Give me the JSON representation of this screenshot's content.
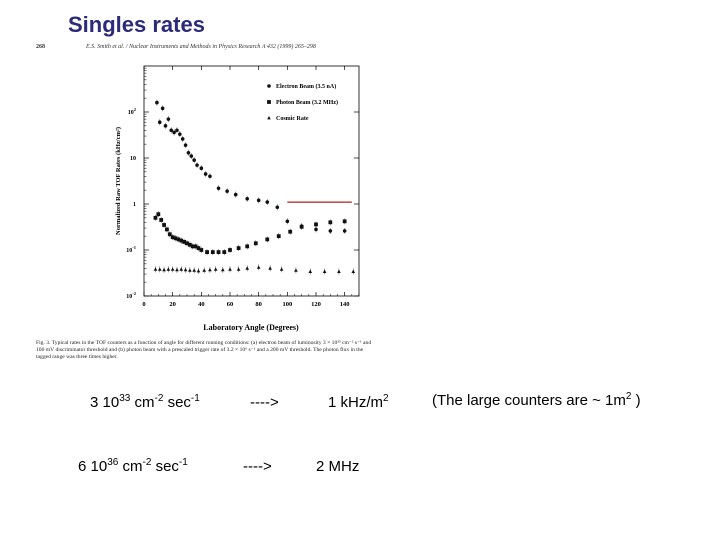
{
  "title": "Singles rates",
  "figure": {
    "page_number": "268",
    "journal_header": "E.S. Smith et al. / Nuclear Instruments and Methods in Physics Research A 432 (1999) 265–298",
    "caption": "Fig. 3. Typical rates in the TOF counters as a function of angle for different running conditions: (a) electron beam of luminosity 3 × 10³³ cm⁻² s⁻¹ and 100 mV discriminator threshold and (b) photon beam with a prescaled trigger rate of 3.2 × 10⁶ s⁻¹ and a 200 mV threshold. The photon flux in the tagged range was three times higher.",
    "reference_line_color": "#b02020"
  },
  "chart_data": {
    "type": "scatter",
    "xlabel": "Laboratory Angle (Degrees)",
    "ylabel": "Normalized Raw TOF Rates (kHz/cm²)",
    "xlim": [
      0,
      150
    ],
    "ylim_log10": [
      -2,
      3
    ],
    "x_ticks": [
      "0",
      "20",
      "40",
      "60",
      "80",
      "100",
      "120",
      "140"
    ],
    "y_ticks": [
      {
        "base": "10",
        "exp": "-2",
        "log": -2
      },
      {
        "base": "10",
        "exp": "-1",
        "log": -1
      },
      {
        "base": "1",
        "exp": "",
        "log": 0
      },
      {
        "base": "10",
        "exp": "",
        "log": 1
      },
      {
        "base": "10",
        "exp": "2",
        "log": 2
      }
    ],
    "log_scale_y": true,
    "legend_position": "top-right",
    "reference_line": {
      "y": 1.1,
      "x_range": [
        100,
        145
      ]
    },
    "series": [
      {
        "name": "Electron Beam (3.5 nA)",
        "marker": "circle",
        "points": [
          [
            9,
            160
          ],
          [
            11,
            60
          ],
          [
            13,
            120
          ],
          [
            15,
            50
          ],
          [
            17,
            70
          ],
          [
            19,
            40
          ],
          [
            21,
            36
          ],
          [
            23,
            40
          ],
          [
            25,
            33
          ],
          [
            27,
            26
          ],
          [
            29,
            19
          ],
          [
            31,
            13
          ],
          [
            33,
            11
          ],
          [
            35,
            9
          ],
          [
            37,
            7
          ],
          [
            40,
            6
          ],
          [
            43,
            4.5
          ],
          [
            46,
            4
          ],
          [
            52,
            2.2
          ],
          [
            58,
            1.9
          ],
          [
            64,
            1.6
          ],
          [
            72,
            1.3
          ],
          [
            80,
            1.2
          ],
          [
            86,
            1.1
          ],
          [
            93,
            0.85
          ],
          [
            100,
            0.42
          ],
          [
            110,
            0.33
          ],
          [
            120,
            0.28
          ],
          [
            130,
            0.26
          ],
          [
            140,
            0.26
          ]
        ]
      },
      {
        "name": "Photon Beam (3.2 MHz)",
        "marker": "square",
        "points": [
          [
            8,
            0.5
          ],
          [
            10,
            0.6
          ],
          [
            12,
            0.45
          ],
          [
            14,
            0.35
          ],
          [
            16,
            0.28
          ],
          [
            18,
            0.22
          ],
          [
            20,
            0.19
          ],
          [
            22,
            0.18
          ],
          [
            24,
            0.17
          ],
          [
            26,
            0.16
          ],
          [
            28,
            0.15
          ],
          [
            30,
            0.14
          ],
          [
            32,
            0.13
          ],
          [
            34,
            0.12
          ],
          [
            36,
            0.12
          ],
          [
            38,
            0.11
          ],
          [
            40,
            0.1
          ],
          [
            44,
            0.09
          ],
          [
            48,
            0.09
          ],
          [
            52,
            0.09
          ],
          [
            56,
            0.09
          ],
          [
            60,
            0.1
          ],
          [
            66,
            0.11
          ],
          [
            72,
            0.12
          ],
          [
            78,
            0.14
          ],
          [
            86,
            0.17
          ],
          [
            94,
            0.2
          ],
          [
            102,
            0.25
          ],
          [
            110,
            0.32
          ],
          [
            120,
            0.36
          ],
          [
            130,
            0.4
          ],
          [
            140,
            0.42
          ]
        ]
      },
      {
        "name": "Cosmic Rate",
        "marker": "triangle",
        "points": [
          [
            8,
            0.038
          ],
          [
            11,
            0.038
          ],
          [
            14,
            0.037
          ],
          [
            17,
            0.038
          ],
          [
            20,
            0.038
          ],
          [
            23,
            0.037
          ],
          [
            26,
            0.038
          ],
          [
            29,
            0.037
          ],
          [
            32,
            0.036
          ],
          [
            35,
            0.036
          ],
          [
            38,
            0.035
          ],
          [
            42,
            0.036
          ],
          [
            46,
            0.037
          ],
          [
            50,
            0.038
          ],
          [
            55,
            0.037
          ],
          [
            60,
            0.038
          ],
          [
            66,
            0.038
          ],
          [
            72,
            0.04
          ],
          [
            80,
            0.042
          ],
          [
            88,
            0.04
          ],
          [
            96,
            0.038
          ],
          [
            106,
            0.036
          ],
          [
            116,
            0.034
          ],
          [
            126,
            0.034
          ],
          [
            136,
            0.034
          ],
          [
            146,
            0.034
          ]
        ]
      }
    ]
  },
  "rates": [
    {
      "prefix": "3 10",
      "lum_exp": "33",
      "mid": " cm",
      "cm_exp": "-2",
      "mid2": " sec",
      "sec_exp": "-1",
      "arrow": "---->",
      "result": "1 kHz/m",
      "result_exp": "2",
      "note_pre": "(The large counters are ~ 1m",
      "note_exp": "2",
      "note_post": " )"
    },
    {
      "prefix": "6 10",
      "lum_exp": "36",
      "mid": " cm",
      "cm_exp": "-2",
      "mid2": " sec",
      "sec_exp": "-1",
      "arrow": "---->",
      "result": "2 MHz"
    }
  ]
}
